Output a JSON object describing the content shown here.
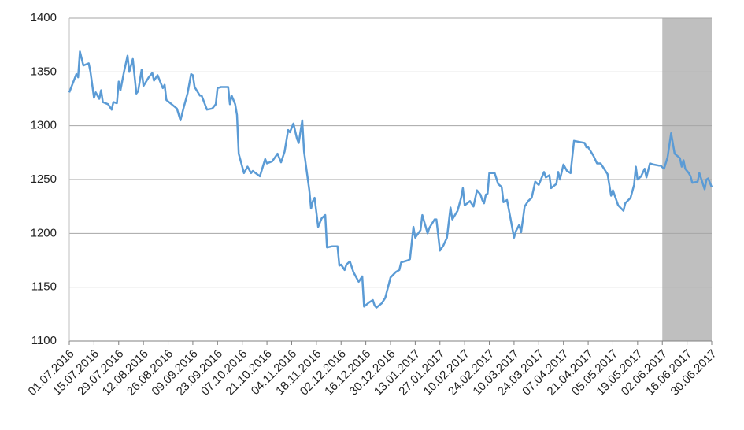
{
  "chart_data": {
    "type": "line",
    "x": [
      "01.07.2016",
      "05.07.2016",
      "06.07.2016",
      "07.07.2016",
      "09.07.2016",
      "12.07.2016",
      "13.07.2016",
      "15.07.2016",
      "16.07.2016",
      "18.07.2016",
      "19.07.2016",
      "20.07.2016",
      "23.07.2016",
      "25.07.2016",
      "26.07.2016",
      "28.07.2016",
      "29.07.2016",
      "30.07.2016",
      "01.08.2016",
      "03.08.2016",
      "04.08.2016",
      "06.08.2016",
      "08.08.2016",
      "09.08.2016",
      "11.08.2016",
      "12.08.2016",
      "15.08.2016",
      "17.08.2016",
      "18.08.2016",
      "20.08.2016",
      "23.08.2016",
      "24.08.2016",
      "25.08.2016",
      "28.08.2016",
      "31.08.2016",
      "02.09.2016",
      "04.09.2016",
      "06.09.2016",
      "08.09.2016",
      "09.09.2016",
      "10.09.2016",
      "13.09.2016",
      "14.09.2016",
      "17.09.2016",
      "20.09.2016",
      "22.09.2016",
      "23.09.2016",
      "25.09.2016",
      "29.09.2016",
      "30.09.2016",
      "01.10.2016",
      "03.10.2016",
      "04.10.2016",
      "05.10.2016",
      "08.10.2016",
      "10.10.2016",
      "12.10.2016",
      "13.10.2016",
      "17.10.2016",
      "20.10.2016",
      "21.10.2016",
      "24.10.2016",
      "27.10.2016",
      "29.10.2016",
      "31.10.2016",
      "02.11.2016",
      "03.11.2016",
      "05.11.2016",
      "07.11.2016",
      "08.11.2016",
      "10.11.2016",
      "11.11.2016",
      "14.11.2016",
      "15.11.2016",
      "16.11.2016",
      "17.11.2016",
      "19.11.2016",
      "21.11.2016",
      "23.11.2016",
      "24.11.2016",
      "27.11.2016",
      "30.11.2016",
      "01.12.2016",
      "02.12.2016",
      "04.12.2016",
      "05.12.2016",
      "07.12.2016",
      "09.12.2016",
      "12.12.2016",
      "14.12.2016",
      "15.12.2016",
      "18.12.2016",
      "20.12.2016",
      "21.12.2016",
      "22.12.2016",
      "25.12.2016",
      "27.12.2016",
      "30.12.2016",
      "02.01.2017",
      "04.01.2017",
      "05.01.2017",
      "09.01.2017",
      "10.01.2017",
      "11.01.2017",
      "12.01.2017",
      "13.01.2017",
      "16.01.2017",
      "17.01.2017",
      "20.01.2017",
      "21.01.2017",
      "24.01.2017",
      "25.01.2017",
      "27.01.2017",
      "29.01.2017",
      "31.01.2017",
      "02.02.2017",
      "03.02.2017",
      "06.02.2017",
      "08.02.2017",
      "09.02.2017",
      "10.02.2017",
      "13.02.2017",
      "15.02.2017",
      "17.02.2017",
      "19.02.2017",
      "20.02.2017",
      "21.02.2017",
      "22.02.2017",
      "23.02.2017",
      "24.02.2017",
      "27.02.2017",
      "01.03.2017",
      "03.03.2017",
      "04.03.2017",
      "06.03.2017",
      "08.03.2017",
      "10.03.2017",
      "11.03.2017",
      "13.03.2017",
      "14.03.2017",
      "16.03.2017",
      "18.03.2017",
      "20.03.2017",
      "22.03.2017",
      "24.03.2017",
      "27.03.2017",
      "28.03.2017",
      "30.03.2017",
      "31.03.2017",
      "03.04.2017",
      "04.04.2017",
      "05.04.2017",
      "07.04.2017",
      "09.04.2017",
      "11.04.2017",
      "13.04.2017",
      "16.04.2017",
      "19.04.2017",
      "20.04.2017",
      "21.04.2017",
      "24.04.2017",
      "26.04.2017",
      "28.04.2017",
      "30.04.2017",
      "02.05.2017",
      "04.05.2017",
      "05.05.2017",
      "08.05.2017",
      "11.05.2017",
      "12.05.2017",
      "15.05.2017",
      "17.05.2017",
      "18.05.2017",
      "19.05.2017",
      "21.05.2017",
      "23.05.2017",
      "24.05.2017",
      "26.05.2017",
      "28.05.2017",
      "31.05.2017",
      "01.06.2017",
      "03.06.2017",
      "05.06.2017",
      "07.06.2017",
      "09.06.2017",
      "12.06.2017",
      "13.06.2017",
      "14.06.2017",
      "15.06.2017",
      "17.06.2017",
      "18.06.2017",
      "19.06.2017",
      "22.06.2017",
      "23.06.2017",
      "26.06.2017",
      "27.06.2017",
      "28.06.2017",
      "30.06.2017"
    ],
    "values": [
      1331,
      1348,
      1345,
      1369,
      1356,
      1358,
      1350,
      1326,
      1331,
      1325,
      1333,
      1322,
      1320,
      1315,
      1322,
      1321,
      1341,
      1333,
      1350,
      1365,
      1350,
      1362,
      1330,
      1332,
      1352,
      1337,
      1345,
      1349,
      1342,
      1347,
      1335,
      1338,
      1324,
      1320,
      1316,
      1305,
      1318,
      1330,
      1348,
      1347,
      1336,
      1328,
      1328,
      1315,
      1316,
      1320,
      1335,
      1336,
      1336,
      1320,
      1328,
      1320,
      1310,
      1274,
      1256,
      1262,
      1256,
      1258,
      1253,
      1269,
      1265,
      1267,
      1274,
      1266,
      1276,
      1296,
      1294,
      1302,
      1288,
      1284,
      1305,
      1276,
      1240,
      1223,
      1230,
      1233,
      1206,
      1214,
      1217,
      1187,
      1188,
      1188,
      1170,
      1171,
      1166,
      1171,
      1174,
      1164,
      1155,
      1160,
      1132,
      1136,
      1138,
      1133,
      1131,
      1135,
      1140,
      1159,
      1164,
      1166,
      1173,
      1175,
      1176,
      1191,
      1206,
      1196,
      1203,
      1217,
      1200,
      1205,
      1213,
      1213,
      1184,
      1189,
      1196,
      1224,
      1213,
      1221,
      1233,
      1242,
      1226,
      1230,
      1225,
      1240,
      1236,
      1231,
      1228,
      1236,
      1237,
      1256,
      1256,
      1246,
      1243,
      1229,
      1231,
      1214,
      1196,
      1202,
      1208,
      1201,
      1225,
      1230,
      1233,
      1248,
      1245,
      1257,
      1252,
      1254,
      1242,
      1246,
      1257,
      1250,
      1264,
      1258,
      1256,
      1286,
      1285,
      1284,
      1280,
      1280,
      1272,
      1265,
      1265,
      1260,
      1255,
      1235,
      1240,
      1226,
      1221,
      1228,
      1233,
      1245,
      1262,
      1250,
      1253,
      1260,
      1252,
      1265,
      1264,
      1263,
      1263,
      1260,
      1271,
      1293,
      1274,
      1270,
      1262,
      1268,
      1260,
      1256,
      1253,
      1247,
      1248,
      1256,
      1241,
      1250,
      1251,
      1243
    ],
    "color": "#5b9bd5",
    "xlim": [
      "01.07.2016",
      "30.06.2017"
    ],
    "xticks": [
      "01.07.2016",
      "15.07.2016",
      "29.07.2016",
      "12.08.2016",
      "26.08.2016",
      "09.09.2016",
      "23.09.2016",
      "07.10.2016",
      "21.10.2016",
      "04.11.2016",
      "18.11.2016",
      "02.12.2016",
      "16.12.2016",
      "30.12.2016",
      "13.01.2017",
      "27.01.2017",
      "10.02.2017",
      "24.02.2017",
      "10.03.2017",
      "24.03.2017",
      "07.04.2017",
      "21.04.2017",
      "05.05.2017",
      "19.05.2017",
      "02.06.2017",
      "16.06.2017",
      "30.06.2017"
    ],
    "ylim": [
      1100,
      1400
    ],
    "yticks": [
      1100,
      1150,
      1200,
      1250,
      1300,
      1350,
      1400
    ],
    "grid": true,
    "shaded_range": [
      "02.06.2017",
      "30.06.2017"
    ],
    "shade_color": "#bfbfbf"
  }
}
